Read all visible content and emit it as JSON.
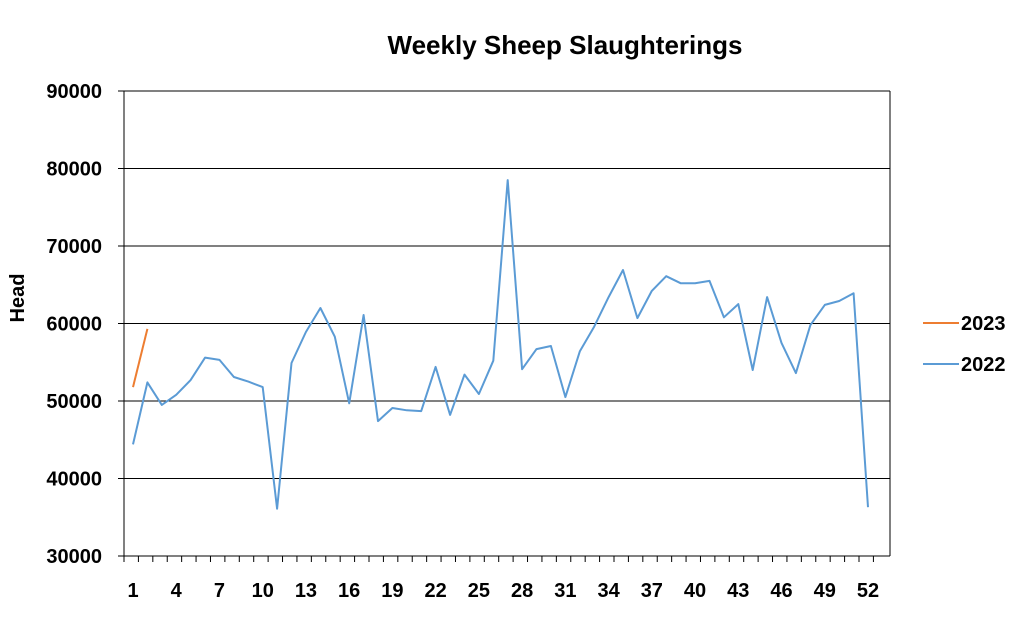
{
  "chart_data": {
    "type": "line",
    "title": "Weekly Sheep Slaughterings",
    "xlabel": "",
    "ylabel": "Head",
    "ylim": [
      30000,
      90000
    ],
    "yticks": [
      30000,
      40000,
      50000,
      60000,
      70000,
      80000,
      90000
    ],
    "xlim": [
      1,
      52
    ],
    "xticks": [
      1,
      4,
      7,
      10,
      13,
      16,
      19,
      22,
      25,
      28,
      31,
      34,
      37,
      40,
      43,
      46,
      49,
      52
    ],
    "grid": "horizontal",
    "legend_position": "right",
    "series": [
      {
        "name": "2023",
        "color": "#ED7D31",
        "x": [
          1,
          2
        ],
        "values": [
          51800,
          59300
        ]
      },
      {
        "name": "2022",
        "color": "#5B9BD5",
        "x": [
          1,
          2,
          3,
          4,
          5,
          6,
          7,
          8,
          9,
          10,
          11,
          12,
          13,
          14,
          15,
          16,
          17,
          18,
          19,
          20,
          21,
          22,
          23,
          24,
          25,
          26,
          27,
          28,
          29,
          30,
          31,
          32,
          33,
          34,
          35,
          36,
          37,
          38,
          39,
          40,
          41,
          42,
          43,
          44,
          45,
          46,
          47,
          48,
          49,
          50,
          51,
          52
        ],
        "values": [
          44400,
          52400,
          49500,
          50800,
          52700,
          55600,
          55300,
          53100,
          52500,
          51800,
          36100,
          54900,
          58900,
          62000,
          58300,
          49700,
          61100,
          47400,
          49100,
          48800,
          48700,
          54400,
          48200,
          53400,
          50900,
          55200,
          78500,
          54100,
          56700,
          57100,
          50500,
          56400,
          59600,
          63400,
          66900,
          60700,
          64200,
          66100,
          65200,
          65200,
          65500,
          60800,
          62500,
          54000,
          63400,
          57500,
          53600,
          59800,
          62400,
          62900,
          63900,
          36300
        ]
      }
    ]
  }
}
